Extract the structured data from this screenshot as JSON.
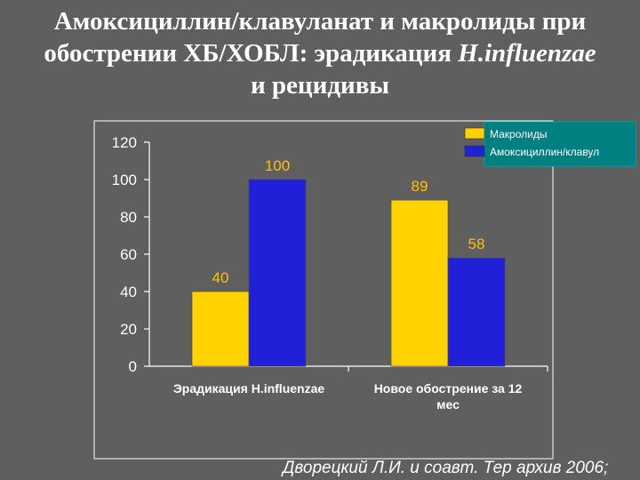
{
  "title": {
    "line1": "Амоксициллин/клавуланат  и макролиды при",
    "line2_prefix": "обострении ХБ/ХОБЛ: эрадикация ",
    "line2_italic": "H.influenzae",
    "line3": "и рецидивы"
  },
  "source": "Дворецкий  Л.И. и соавт. Тер архив 2006;",
  "colors": {
    "background": "#5f5f5f",
    "plot_area": "#5f5f5f",
    "macrolides": "#ffd200",
    "amoxiclav": "#2020d8",
    "data_label": "#ffc000",
    "axis_text": "#ffffff",
    "legend_bg": "#008080"
  },
  "chart_data": {
    "type": "bar",
    "categories": [
      [
        "Эрадикация H.influenzae"
      ],
      [
        "Новое обострение за 12",
        "мес"
      ]
    ],
    "series": [
      {
        "name": "Макролиды",
        "values": [
          40,
          89
        ],
        "color": "#ffd200"
      },
      {
        "name": "Амоксициллин/клавул",
        "values": [
          100,
          58
        ],
        "color": "#2020d8"
      }
    ],
    "ylim": [
      0,
      120
    ],
    "yticks": [
      0,
      20,
      40,
      60,
      80,
      100,
      120
    ],
    "grid": false,
    "legend": "top-right",
    "data_labels": true
  }
}
